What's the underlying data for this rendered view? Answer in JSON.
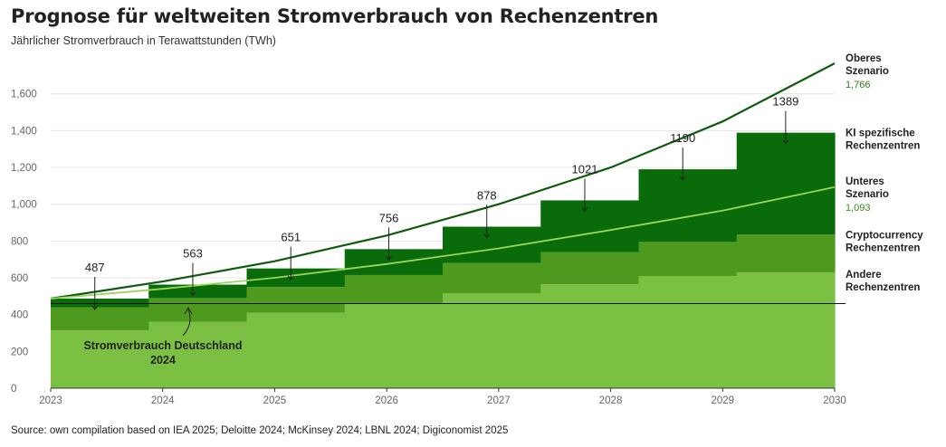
{
  "title": "Prognose für weltweiten Stromverbrauch von Rechenzentren",
  "subtitle": "Jährlicher Stromverbrauch in Terawattstunden (TWh)",
  "source": "Source: own compilation based on IEA 2025; Deloitte 2024; McKinsey 2024; LBNL 2024; Digiconomist 2025",
  "chart_data": {
    "type": "area",
    "ylim": [
      0,
      1766
    ],
    "yticks": [
      0,
      200,
      400,
      600,
      800,
      1000,
      1200,
      1400,
      1600
    ],
    "ytick_labels": [
      "0",
      "200",
      "400",
      "600",
      "800",
      "1,000",
      "1,200",
      "1,400",
      "1,600"
    ],
    "xlim": [
      2023,
      2030
    ],
    "xticks": [
      2023,
      2024,
      2025,
      2026,
      2027,
      2028,
      2029,
      2030
    ],
    "xtick_labels": [
      "2023",
      "2024",
      "2025",
      "2026",
      "2027",
      "2028",
      "2029",
      "2030"
    ],
    "grid": true,
    "steps": [
      {
        "year": 2023,
        "andere": 315,
        "crypto": 125,
        "ki": 47,
        "total": 487,
        "total_label": "487"
      },
      {
        "year": 2024,
        "andere": 360,
        "crypto": 130,
        "ki": 73,
        "total": 563,
        "total_label": "563"
      },
      {
        "year": 2025,
        "andere": 410,
        "crypto": 140,
        "ki": 101,
        "total": 651,
        "total_label": "651"
      },
      {
        "year": 2026,
        "andere": 460,
        "crypto": 155,
        "ki": 141,
        "total": 756,
        "total_label": "756"
      },
      {
        "year": 2027,
        "andere": 515,
        "crypto": 165,
        "ki": 198,
        "total": 878,
        "total_label": "878"
      },
      {
        "year": 2028,
        "andere": 565,
        "crypto": 175,
        "ki": 281,
        "total": 1021,
        "total_label": "1021"
      },
      {
        "year": 2029,
        "andere": 610,
        "crypto": 185,
        "ki": 395,
        "total": 1190,
        "total_label": "1190"
      },
      {
        "year": 2030,
        "andere": 630,
        "crypto": 205,
        "ki": 554,
        "total": 1389,
        "total_label": "1389"
      }
    ],
    "series": [
      {
        "key": "andere",
        "name": "Andere\nRechenzentren",
        "color": "#7bc043"
      },
      {
        "key": "crypto",
        "name": "Cryptocurrency\nRechenzentren",
        "color": "#4e9a1e"
      },
      {
        "key": "ki",
        "name": "KI spezifische\nRechenzentren",
        "color": "#0a6b0a"
      }
    ],
    "scenarios": [
      {
        "name": "Oberes\nSzenario",
        "value_label": "1,766",
        "color": "#0f5a0f",
        "value_color": "#2f7d1f",
        "x": [
          2023,
          2024,
          2025,
          2026,
          2027,
          2028,
          2029,
          2030
        ],
        "y": [
          487,
          580,
          690,
          830,
          1000,
          1200,
          1450,
          1766
        ]
      },
      {
        "name": "Unteres\nSzenario",
        "value_label": "1,093",
        "color": "#9ad65e",
        "value_color": "#3e8a1e",
        "x": [
          2023,
          2024,
          2025,
          2026,
          2027,
          2028,
          2029,
          2030
        ],
        "y": [
          487,
          540,
          600,
          675,
          760,
          860,
          965,
          1093
        ]
      }
    ],
    "reference_line": {
      "label": "Stromverbrauch Deutschland\n2024",
      "value": 460
    },
    "colors": {
      "grid": "#e4e4e4",
      "axis": "#333333",
      "tick_label": "#666666",
      "annotation": "#222222"
    }
  }
}
